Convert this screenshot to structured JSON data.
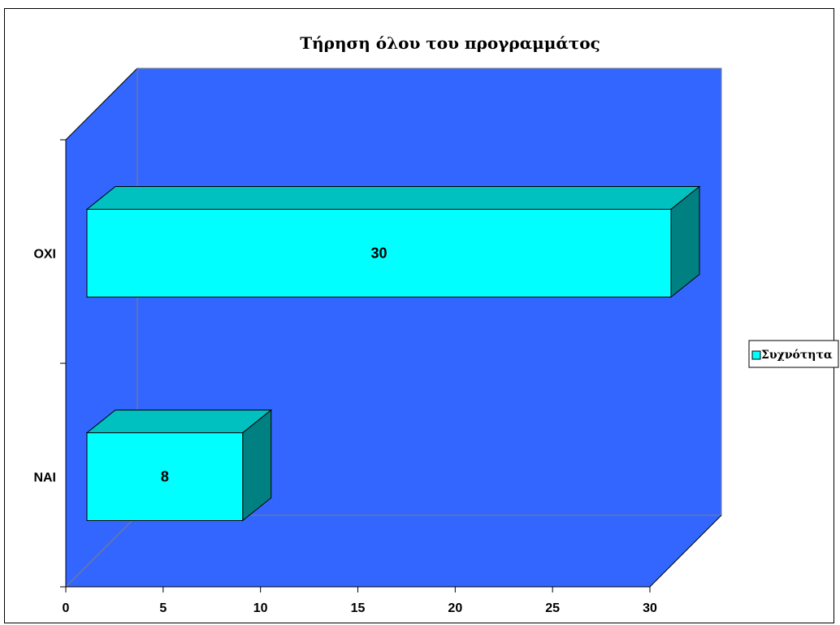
{
  "chart_data": {
    "type": "bar",
    "orientation": "horizontal",
    "title": "Τήρηση όλου του προγραμμάτος",
    "categories": [
      "ΝΑΙ",
      "ΟΧΙ"
    ],
    "series": [
      {
        "name": "Συχνότητα",
        "values": [
          8,
          30
        ]
      }
    ],
    "data_labels": [
      "8",
      "30"
    ],
    "xlim": [
      0,
      30
    ],
    "x_ticks": [
      "0",
      "5",
      "10",
      "15",
      "20",
      "25",
      "30"
    ],
    "legend_position": "right",
    "three_d": true,
    "grid": false,
    "colors": {
      "plot_area": "#3366FF",
      "bar_front": "#00FFFF",
      "bar_top": "#00C0C0",
      "bar_side": "#008080",
      "legend_swatch": "#00FFFF"
    }
  }
}
